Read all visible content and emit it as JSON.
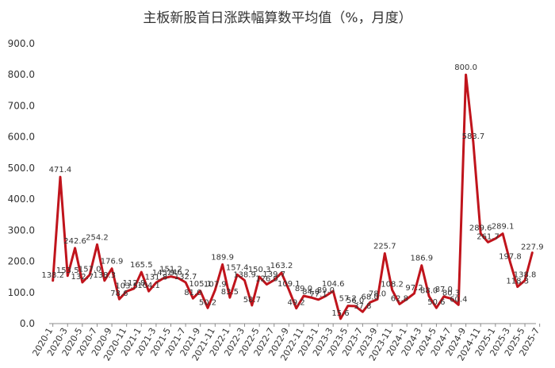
{
  "chart_data": {
    "type": "line",
    "title": "主板新股首日涨跌幅算数平均值（%，月度）",
    "xlabel": "",
    "ylabel": "",
    "ylim": [
      0,
      900
    ],
    "yticks": [
      "0.0",
      "100.0",
      "200.0",
      "300.0",
      "400.0",
      "500.0",
      "600.0",
      "700.0",
      "800.0",
      "900.0"
    ],
    "grid": false,
    "legend": "none",
    "line_color": "#c0141c",
    "x_tick_labels": [
      "2020-1",
      "2020-3",
      "2020-5",
      "2020-7",
      "2020-9",
      "2020-11",
      "2021-1",
      "2021-3",
      "2021-5",
      "2021-7",
      "2021-9",
      "2021-11",
      "2022-1",
      "2022-3",
      "2022-5",
      "2022-7",
      "2022-9",
      "2022-11",
      "2023-1",
      "2023-3",
      "2023-5",
      "2023-7",
      "2023-9",
      "2023-11",
      "2024-1",
      "2024-3",
      "2024-5",
      "2024-7",
      "2024-9",
      "2024-11",
      "2025-1",
      "2025-3",
      "2025-5",
      "2025-7"
    ],
    "series": [
      {
        "values": [
          138.2,
          471.4,
          153.5,
          242.6,
          132.7,
          157.0,
          254.2,
          138.3,
          176.9,
          78.6,
          103.5,
          112.8,
          165.5,
          104.1,
          131.8,
          145.9,
          151.2,
          146.2,
          132.7,
          81.0,
          105.1,
          50.2,
          107.9,
          189.9,
          83.5,
          157.4,
          138.9,
          58.7,
          150.3,
          126.0,
          139.7,
          163.2,
          109.1,
          49.2,
          89.0,
          84.0,
          77.1,
          89.0,
          104.6,
          15.6,
          57.2,
          56.0,
          37.8,
          68.0,
          78.0,
          225.7,
          108.2,
          62.8,
          79.0,
          97.2,
          186.9,
          88.0,
          50.6,
          87.0,
          80.3,
          60.4,
          800.0,
          583.7,
          289.6,
          261.7,
          273.0,
          289.1,
          197.8,
          118.3,
          138.8,
          227.9
        ],
        "labels": [
          "138.2",
          "471.4",
          "153.5",
          "242.6",
          "132.7",
          "157.0",
          "254.2",
          "138.3",
          "176.9",
          "78.6",
          "103.5",
          "112.8",
          "165.5",
          "104.1",
          "131.8",
          "145.9",
          "151.2",
          "146.2",
          "132.7",
          "81.0",
          "105.1",
          "50.2",
          "107.9",
          "189.9",
          "83.5",
          "157.4",
          "138.9",
          "58.7",
          "150.3",
          "126.0",
          "139.7",
          "163.2",
          "109.1",
          "49.2",
          "89.0",
          "84.0",
          "77.1",
          "89.0",
          "104.6",
          "15.6",
          "57.2",
          "56.0",
          "37.8",
          "68.0",
          "78.0",
          "225.7",
          "108.2",
          "62.8",
          "",
          "97.2",
          "186.9",
          "88.0",
          "50.6",
          "87.0",
          "80.3",
          "60.4",
          "800.0",
          "583.7",
          "289.6",
          "261.7",
          "",
          "289.1",
          "197.8",
          "118.3",
          "138.8",
          "227.9"
        ]
      }
    ]
  }
}
